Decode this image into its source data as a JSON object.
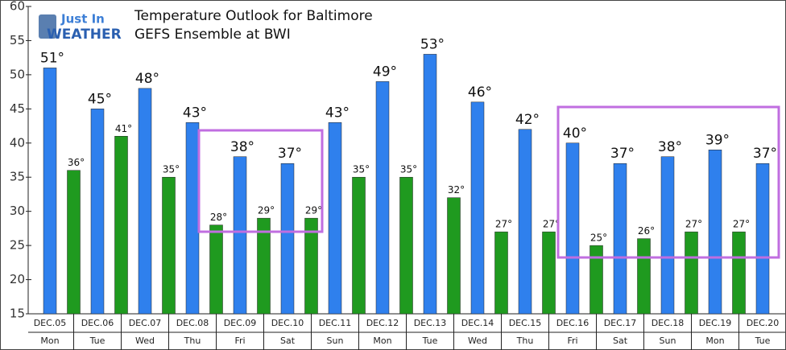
{
  "chart_data": {
    "type": "bar",
    "title": "Temperature Outlook for Baltimore",
    "subtitle": "GEFS Ensemble at BWI",
    "logo": [
      "Just In",
      "WEATHER"
    ],
    "categories": [
      "DEC.05",
      "DEC.06",
      "DEC.07",
      "DEC.08",
      "DEC.09",
      "DEC.10",
      "DEC.11",
      "DEC.12",
      "DEC.13",
      "DEC.14",
      "DEC.15",
      "DEC.16",
      "DEC.17",
      "DEC.18",
      "DEC.19",
      "DEC.20"
    ],
    "weekdays": [
      "Mon",
      "Tue",
      "Wed",
      "Thu",
      "Fri",
      "Sat",
      "Sun",
      "Mon",
      "Tue",
      "Wed",
      "Thu",
      "Fri",
      "Sat",
      "Sun",
      "Mon",
      "Tue"
    ],
    "series": [
      {
        "color": "#2f80ed",
        "values": [
          51,
          45,
          48,
          43,
          38,
          37,
          43,
          49,
          53,
          46,
          42,
          40,
          37,
          38,
          39,
          37
        ],
        "value_labels": [
          "51°",
          "45°",
          "48°",
          "43°",
          "38°",
          "37°",
          "43°",
          "49°",
          "53°",
          "46°",
          "42°",
          "40°",
          "37°",
          "38°",
          "39°",
          "37°"
        ]
      },
      {
        "color": "#1f9a1f",
        "values": [
          36,
          41,
          35,
          28,
          29,
          29,
          35,
          35,
          32,
          27,
          27,
          25,
          26,
          27,
          27,
          null
        ],
        "value_labels": [
          "36°",
          "41°",
          "35°",
          "28°",
          "29°",
          "29°",
          "35°",
          "35°",
          "32°",
          "27°",
          "27°",
          "25°",
          "26°",
          "27°",
          "27°",
          null
        ]
      }
    ],
    "ylim": [
      15,
      60
    ],
    "yticks": [
      15,
      20,
      25,
      30,
      35,
      40,
      45,
      50,
      55,
      60
    ],
    "grid": false
  }
}
